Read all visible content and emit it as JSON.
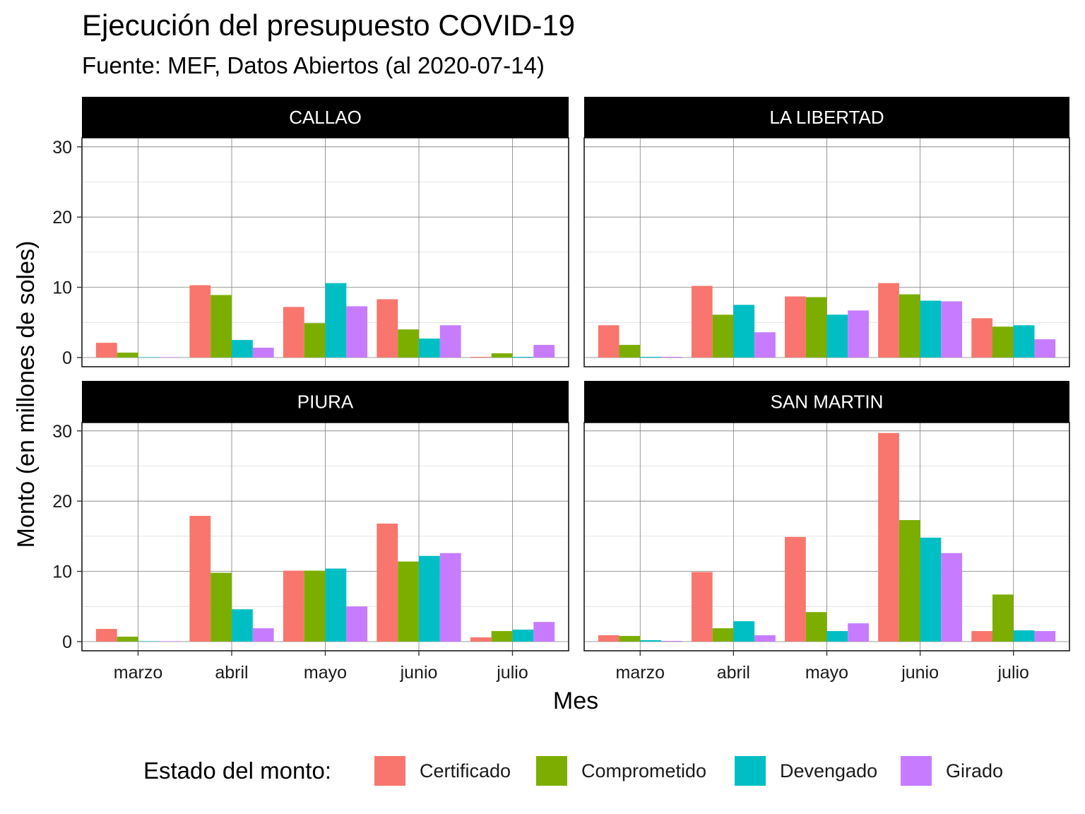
{
  "title": "Ejecución del presupuesto COVID-19",
  "subtitle": "Fuente: MEF, Datos Abiertos (al 2020-07-14)",
  "xlabel": "Mes",
  "ylabel": "Monto (en millones de soles)",
  "legend": {
    "title": "Estado del monto:",
    "items": [
      {
        "label": "Certificado",
        "color": "#F8766D"
      },
      {
        "label": "Comprometido",
        "color": "#7CAE00"
      },
      {
        "label": "Devengado",
        "color": "#00BFC4"
      },
      {
        "label": "Girado",
        "color": "#C77CFF"
      }
    ]
  },
  "chart_data": {
    "type": "bar",
    "layout": "facet-grid 2x2",
    "grid": true,
    "legend_position": "bottom",
    "categories": [
      "marzo",
      "abril",
      "mayo",
      "junio",
      "julio"
    ],
    "ylim": [
      0,
      32
    ],
    "yticks": [
      0,
      10,
      20,
      30
    ],
    "facets": [
      {
        "name": "CALLAO",
        "series": [
          {
            "name": "Certificado",
            "values": [
              2.1,
              10.3,
              7.2,
              8.3,
              0.1
            ]
          },
          {
            "name": "Comprometido",
            "values": [
              0.7,
              8.9,
              4.9,
              4.0,
              0.6
            ]
          },
          {
            "name": "Devengado",
            "values": [
              0.0,
              2.5,
              10.6,
              2.7,
              0.1
            ]
          },
          {
            "name": "Girado",
            "values": [
              0.0,
              1.4,
              7.3,
              4.6,
              1.8
            ]
          }
        ]
      },
      {
        "name": "LA LIBERTAD",
        "series": [
          {
            "name": "Certificado",
            "values": [
              4.6,
              10.2,
              8.7,
              10.6,
              5.6
            ]
          },
          {
            "name": "Comprometido",
            "values": [
              1.8,
              6.1,
              8.6,
              9.0,
              4.4
            ]
          },
          {
            "name": "Devengado",
            "values": [
              0.1,
              7.5,
              6.1,
              8.1,
              4.6
            ]
          },
          {
            "name": "Girado",
            "values": [
              0.1,
              3.6,
              6.7,
              8.0,
              2.6
            ]
          }
        ]
      },
      {
        "name": "PIURA",
        "series": [
          {
            "name": "Certificado",
            "values": [
              1.8,
              17.9,
              10.1,
              16.8,
              0.6
            ]
          },
          {
            "name": "Comprometido",
            "values": [
              0.7,
              9.8,
              10.1,
              11.4,
              1.5
            ]
          },
          {
            "name": "Devengado",
            "values": [
              0.0,
              4.6,
              10.4,
              12.2,
              1.7
            ]
          },
          {
            "name": "Girado",
            "values": [
              0.0,
              1.9,
              5.0,
              12.6,
              2.8
            ]
          }
        ]
      },
      {
        "name": "SAN MARTIN",
        "series": [
          {
            "name": "Certificado",
            "values": [
              0.9,
              9.9,
              14.9,
              29.7,
              1.5
            ]
          },
          {
            "name": "Comprometido",
            "values": [
              0.8,
              1.9,
              4.2,
              17.3,
              6.7
            ]
          },
          {
            "name": "Devengado",
            "values": [
              0.2,
              2.9,
              1.5,
              14.8,
              1.6
            ]
          },
          {
            "name": "Girado",
            "values": [
              0.1,
              0.9,
              2.6,
              12.6,
              1.5
            ]
          }
        ]
      }
    ]
  }
}
